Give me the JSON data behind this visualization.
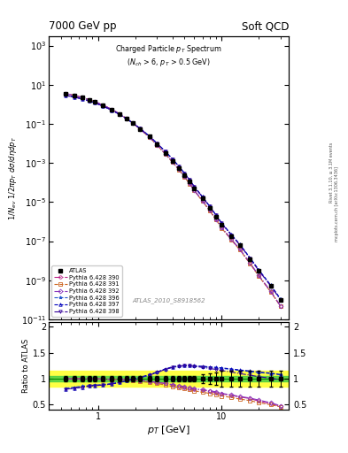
{
  "title_top_left": "7000 GeV pp",
  "title_top_right": "Soft QCD",
  "watermark": "ATLAS_2010_S8918562",
  "ylabel_main": "$1/N_{ev}$ $1/2\\pi p_T$ $d\\sigma/d\\eta dp_T$",
  "ylabel_ratio": "Ratio to ATLAS",
  "xlabel": "$p_T$ [GeV]",
  "rivet_label": "Rivet 3.1.10, ≥ 3.1M events",
  "mcplots_label": "mcplots.cern.ch [arXiv:1306.3436]",
  "pt_values": [
    0.55,
    0.65,
    0.75,
    0.85,
    0.95,
    1.1,
    1.3,
    1.5,
    1.7,
    1.9,
    2.2,
    2.6,
    3.0,
    3.5,
    4.0,
    4.5,
    5.0,
    5.5,
    6.0,
    7.0,
    8.0,
    9.0,
    10.0,
    12.0,
    14.0,
    17.0,
    20.0,
    25.0,
    30.0
  ],
  "atlas_data": [
    3.5,
    2.8,
    2.2,
    1.7,
    1.35,
    0.9,
    0.55,
    0.32,
    0.19,
    0.115,
    0.055,
    0.022,
    0.009,
    0.0033,
    0.0013,
    0.00055,
    0.00024,
    0.00011,
    5e-05,
    1.5e-05,
    5e-06,
    1.8e-06,
    7e-07,
    1.8e-07,
    6e-08,
    1.2e-08,
    3e-09,
    5e-10,
    1e-10
  ],
  "atlas_err_rel": [
    0.05,
    0.05,
    0.05,
    0.05,
    0.05,
    0.05,
    0.05,
    0.05,
    0.05,
    0.05,
    0.05,
    0.05,
    0.05,
    0.05,
    0.05,
    0.05,
    0.05,
    0.05,
    0.05,
    0.08,
    0.1,
    0.12,
    0.15,
    0.15,
    0.15,
    0.15,
    0.15,
    0.15,
    0.15
  ],
  "mc_lines": [
    {
      "label": "Pythia 6.428 390",
      "color": "#bb2288",
      "marker": "o",
      "linestyle": "-.",
      "ratio": [
        1.0,
        1.0,
        1.0,
        1.0,
        1.0,
        0.99,
        0.99,
        0.99,
        0.99,
        0.98,
        0.97,
        0.95,
        0.93,
        0.91,
        0.88,
        0.85,
        0.83,
        0.81,
        0.8,
        0.78,
        0.76,
        0.73,
        0.71,
        0.68,
        0.65,
        0.62,
        0.57,
        0.52,
        0.47
      ]
    },
    {
      "label": "Pythia 6.428 391",
      "color": "#cc6622",
      "marker": "s",
      "linestyle": "--",
      "ratio": [
        1.0,
        1.0,
        1.0,
        1.0,
        1.0,
        0.99,
        0.99,
        0.99,
        0.98,
        0.97,
        0.95,
        0.93,
        0.91,
        0.88,
        0.85,
        0.83,
        0.81,
        0.79,
        0.77,
        0.74,
        0.72,
        0.7,
        0.67,
        0.64,
        0.61,
        0.58,
        0.54,
        0.5,
        0.46
      ]
    },
    {
      "label": "Pythia 6.428 392",
      "color": "#8833bb",
      "marker": "D",
      "linestyle": "-.",
      "ratio": [
        1.0,
        1.0,
        1.0,
        1.0,
        1.0,
        1.0,
        0.99,
        0.99,
        0.99,
        0.98,
        0.97,
        0.95,
        0.93,
        0.91,
        0.89,
        0.87,
        0.85,
        0.83,
        0.81,
        0.79,
        0.77,
        0.75,
        0.72,
        0.69,
        0.66,
        0.63,
        0.59,
        0.54,
        0.48
      ]
    },
    {
      "label": "Pythia 6.428 396",
      "color": "#2255cc",
      "marker": "*",
      "linestyle": "--",
      "ratio": [
        0.82,
        0.84,
        0.86,
        0.87,
        0.88,
        0.89,
        0.91,
        0.93,
        0.96,
        0.99,
        1.02,
        1.07,
        1.12,
        1.18,
        1.22,
        1.24,
        1.25,
        1.25,
        1.24,
        1.23,
        1.22,
        1.21,
        1.2,
        1.18,
        1.16,
        1.14,
        1.12,
        1.1,
        1.08
      ]
    },
    {
      "label": "Pythia 6.428 397",
      "color": "#0000bb",
      "marker": "^",
      "linestyle": "--",
      "ratio": [
        0.8,
        0.82,
        0.84,
        0.86,
        0.87,
        0.88,
        0.9,
        0.93,
        0.96,
        0.99,
        1.03,
        1.08,
        1.13,
        1.19,
        1.23,
        1.25,
        1.26,
        1.26,
        1.25,
        1.24,
        1.23,
        1.22,
        1.21,
        1.19,
        1.17,
        1.15,
        1.13,
        1.11,
        1.08
      ]
    },
    {
      "label": "Pythia 6.428 398",
      "color": "#330099",
      "marker": "v",
      "linestyle": "-.",
      "ratio": [
        0.8,
        0.82,
        0.84,
        0.86,
        0.87,
        0.88,
        0.9,
        0.93,
        0.96,
        0.99,
        1.02,
        1.07,
        1.12,
        1.18,
        1.22,
        1.24,
        1.25,
        1.25,
        1.24,
        1.22,
        1.2,
        1.18,
        1.16,
        1.13,
        1.1,
        1.07,
        1.04,
        1.01,
        0.98
      ]
    }
  ],
  "xmin": 0.4,
  "xmax": 35.0,
  "ymin": 1e-11,
  "ymax": 3000.0,
  "ratio_ymin": 0.4,
  "ratio_ymax": 2.1,
  "ratio_yticks": [
    0.5,
    1.0,
    1.5,
    2.0
  ],
  "ratio_yticklabels": [
    "0.5",
    "1",
    "1.5",
    "2"
  ],
  "green_band": 0.05,
  "yellow_band": 0.3
}
